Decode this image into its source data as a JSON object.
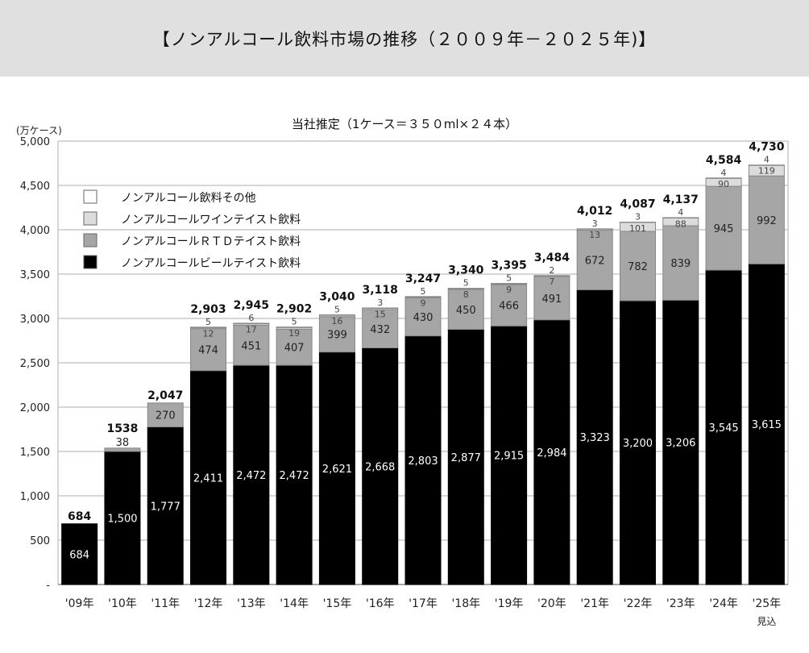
{
  "header": {
    "title": "【ノンアルコール飲料市場の推移（２００９年－２０２５年)】"
  },
  "chart_data": {
    "type": "bar",
    "stacked": true,
    "title": "当社推定（1ケース＝３５０ml×２４本）",
    "ylabel": "(万ケース)",
    "ylim": [
      0,
      5000
    ],
    "yticks": [
      "-",
      "500",
      "1,000",
      "1,500",
      "2,000",
      "2,500",
      "3,000",
      "3,500",
      "4,000",
      "4,500",
      "5,000"
    ],
    "grid": true,
    "legend_position": "top-left",
    "categories": [
      "'09年",
      "'10年",
      "'11年",
      "'12年",
      "'13年",
      "'14年",
      "'15年",
      "'16年",
      "'17年",
      "'18年",
      "'19年",
      "'20年",
      "'21年",
      "'22年",
      "'23年",
      "'24年",
      "'25年"
    ],
    "category_note": "見込",
    "series": [
      {
        "name": "ノンアルコールビールテイスト飲料",
        "color": "#000000",
        "values": [
          684,
          1500,
          1777,
          2411,
          2472,
          2472,
          2621,
          2668,
          2803,
          2877,
          2915,
          2984,
          3323,
          3200,
          3206,
          3545,
          3615
        ],
        "labels": [
          "684",
          "1,500",
          "1,777",
          "2,411",
          "2,472",
          "2,472",
          "2,621",
          "2,668",
          "2,803",
          "2,877",
          "2,915",
          "2,984",
          "3,323",
          "3,200",
          "3,206",
          "3,545",
          "3,615"
        ]
      },
      {
        "name": "ノンアルコールＲＴＤテイスト飲料",
        "color": "#a6a6a6",
        "values": [
          0,
          38,
          270,
          474,
          451,
          407,
          399,
          432,
          430,
          450,
          466,
          491,
          672,
          782,
          839,
          945,
          992
        ]
      },
      {
        "name": "ノンアルコールワインテイスト飲料",
        "color": "#dcdcdc",
        "values": [
          0,
          0,
          0,
          12,
          17,
          19,
          16,
          15,
          9,
          8,
          9,
          7,
          13,
          101,
          88,
          90,
          119
        ]
      },
      {
        "name": "ノンアルコール飲料その他",
        "color": "#ffffff",
        "values": [
          0,
          0,
          0,
          5,
          6,
          5,
          5,
          3,
          5,
          5,
          5,
          2,
          3,
          3,
          4,
          4,
          4
        ]
      }
    ],
    "totals": [
      "684",
      "1538",
      "2,047",
      "2,903",
      "2,945",
      "2,902",
      "3,040",
      "3,118",
      "3,247",
      "3,340",
      "3,395",
      "3,484",
      "4,012",
      "4,087",
      "4,137",
      "4,584",
      "4,730"
    ]
  }
}
